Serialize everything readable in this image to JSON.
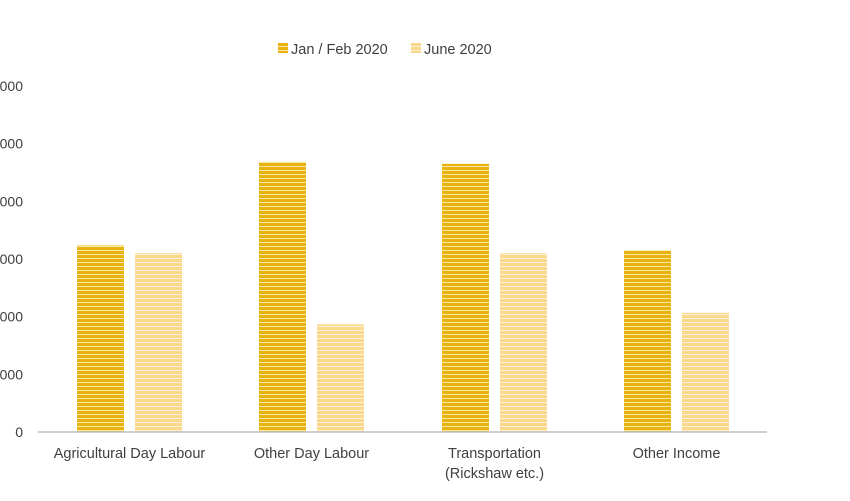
{
  "chart_data": {
    "type": "bar",
    "categories": [
      [
        "Agricultural Day Labour"
      ],
      [
        "Other Day Labour"
      ],
      [
        "Transportation",
        "(Rickshaw etc.)"
      ],
      [
        "Other Income"
      ]
    ],
    "series": [
      {
        "name": "Jan / Feb 2020",
        "values": [
          9700,
          14050,
          13950,
          9450
        ],
        "color": "#E8B30F"
      },
      {
        "name": "June 2020",
        "values": [
          9300,
          5600,
          9300,
          6200
        ],
        "color": "#FBD889"
      }
    ],
    "yticks": [
      "0",
      "000",
      "000",
      "000",
      "000",
      "000",
      "000"
    ],
    "ylim": [
      0,
      18000
    ],
    "title": "",
    "xlabel": "",
    "ylabel": "",
    "legend_position": "top",
    "grid": false
  }
}
